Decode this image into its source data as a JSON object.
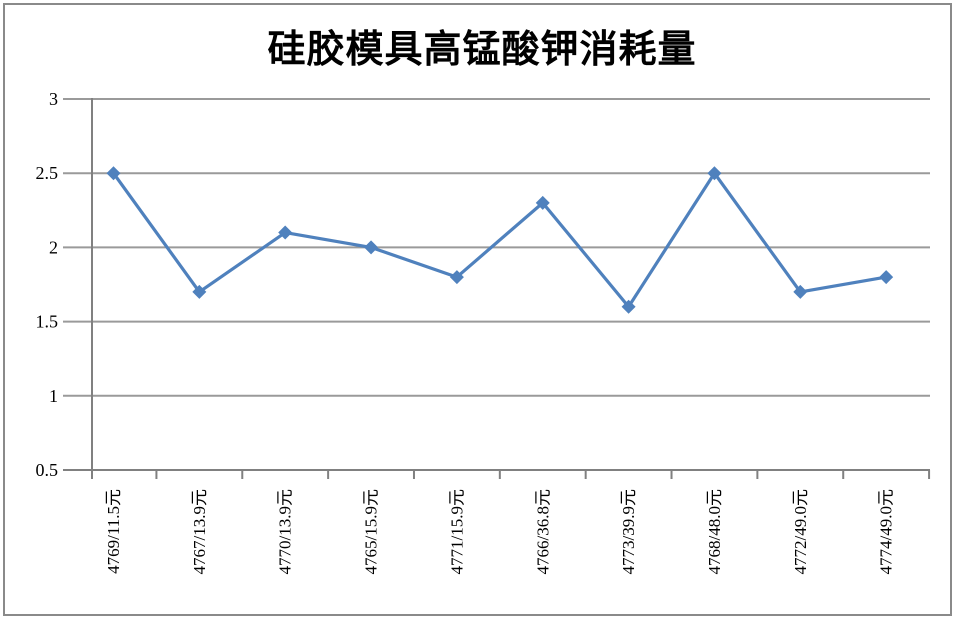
{
  "window": {
    "background_color": "#FFFFFF",
    "frame_border_color": "#8A8A8A"
  },
  "chart_data": {
    "type": "line",
    "title": "硅胶模具高锰酸钾消耗量",
    "categories": [
      "4769/11.5元",
      "4767/13.9元",
      "4770/13.9元",
      "4765/15.9元",
      "4771/15.9元",
      "4766/36.8元",
      "4773/39.9元",
      "4768/48.0元",
      "4772/49.0元",
      "4774/49.0元"
    ],
    "values": [
      2.5,
      1.7,
      2.1,
      2.0,
      1.8,
      2.3,
      1.6,
      2.5,
      1.7,
      1.8
    ],
    "xlabel": "",
    "ylabel": "",
    "ylim": [
      0.5,
      3
    ],
    "ytick_step": 0.5,
    "ytick_labels": [
      "3",
      "2.5",
      "2",
      "1.5",
      "1",
      "0.5"
    ],
    "xtick_label_rotation_deg": -90,
    "grid": "horizontal",
    "legend_position": "none",
    "marker": "diamond",
    "colors": {
      "series": "#4F81BD",
      "gridline": "#9A9A9A",
      "axis": "#808080",
      "text": "#000000"
    }
  }
}
